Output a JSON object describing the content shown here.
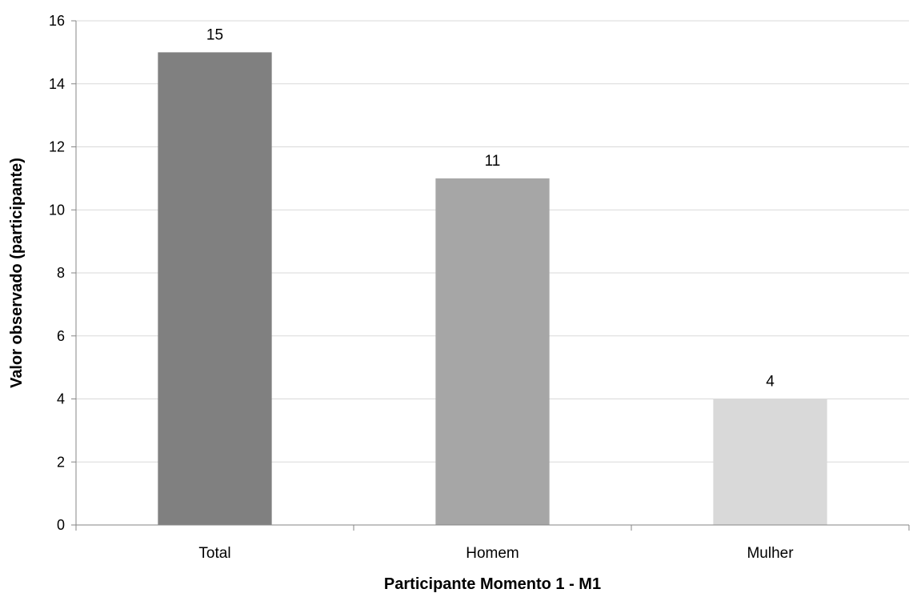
{
  "chart_data": {
    "type": "bar",
    "categories": [
      "Total",
      "Homem",
      "Mulher"
    ],
    "values": [
      15,
      11,
      4
    ],
    "data_labels": [
      "15",
      "11",
      "4"
    ],
    "bar_colors": [
      "#808080",
      "#a6a6a6",
      "#d9d9d9"
    ],
    "xlabel": "Participante Momento 1 - M1",
    "ylabel": "Valor observado (participante)",
    "ylim": [
      0,
      16
    ],
    "ytick_step": 2,
    "yticks": [
      "0",
      "2",
      "4",
      "6",
      "8",
      "10",
      "12",
      "14",
      "16"
    ],
    "grid": true,
    "legend": "none"
  }
}
